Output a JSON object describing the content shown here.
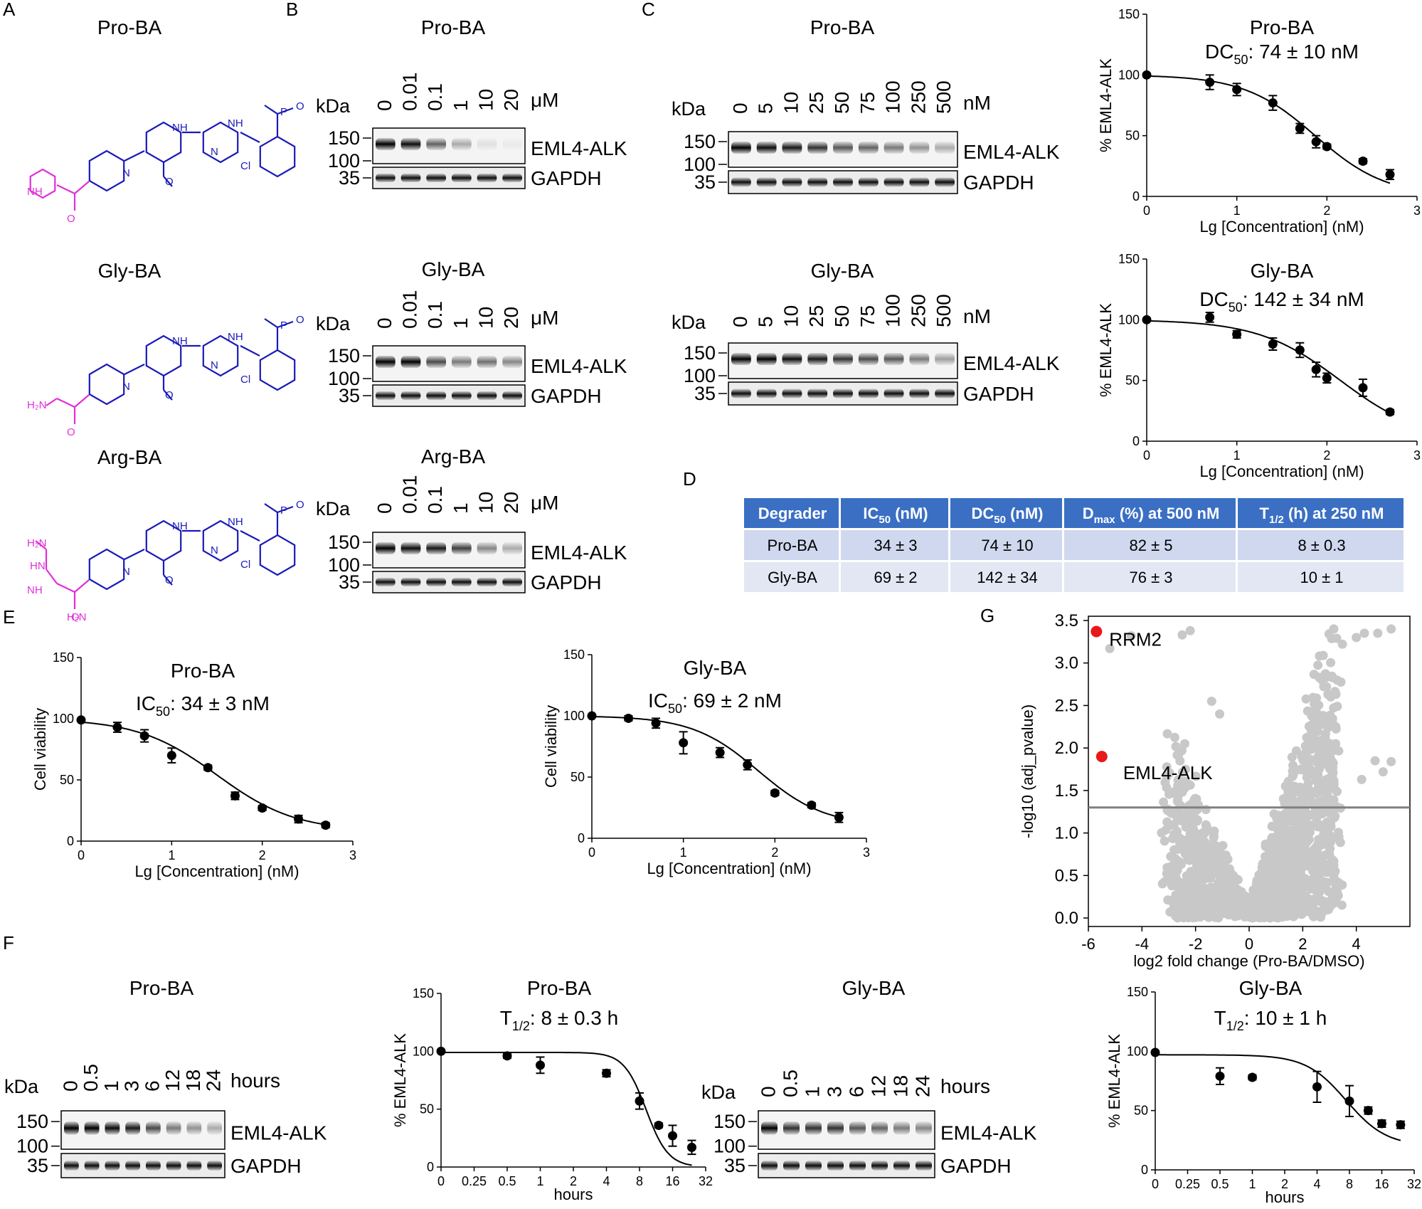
{
  "panels": {
    "A": {
      "label": "A",
      "compounds": [
        {
          "name": "Pro-BA",
          "warhead_atoms": [
            "N",
            "NH",
            "NH",
            "N",
            "O",
            "P",
            "Cl",
            "O"
          ],
          "ligand_atoms": [
            "NH",
            "O"
          ]
        },
        {
          "name": "Gly-BA",
          "warhead_atoms": [
            "N",
            "NH",
            "NH",
            "N",
            "O",
            "P",
            "Cl",
            "O"
          ],
          "ligand_atoms": [
            "H₂N",
            "O"
          ]
        },
        {
          "name": "Arg-BA",
          "warhead_atoms": [
            "N",
            "NH",
            "NH",
            "N",
            "O",
            "P",
            "Cl",
            "O"
          ],
          "ligand_atoms": [
            "NH",
            "H₂N",
            "HN",
            "H₂N",
            "O"
          ]
        }
      ]
    },
    "B": {
      "label": "B",
      "kda": "kDa",
      "unit": "μM",
      "lanes": [
        "0",
        "0.01",
        "0.1",
        "1",
        "10",
        "20"
      ],
      "markers": [
        "150",
        "100",
        "35"
      ],
      "bands": [
        "EML4-ALK",
        "GAPDH"
      ],
      "blots": [
        {
          "title": "Pro-BA",
          "intensity": [
            1.0,
            0.95,
            0.6,
            0.3,
            0.08,
            0.03
          ]
        },
        {
          "title": "Gly-BA",
          "intensity": [
            1.0,
            1.0,
            0.7,
            0.5,
            0.55,
            0.45
          ]
        },
        {
          "title": "Arg-BA",
          "intensity": [
            1.0,
            0.95,
            0.9,
            0.75,
            0.45,
            0.3
          ]
        }
      ]
    },
    "C": {
      "label": "C",
      "kda": "kDa",
      "unit": "nM",
      "lanes": [
        "0",
        "5",
        "10",
        "25",
        "50",
        "75",
        "100",
        "250",
        "500"
      ],
      "markers": [
        "150",
        "100",
        "35"
      ],
      "bands": [
        "EML4-ALK",
        "GAPDH"
      ],
      "blots": [
        {
          "title": "Pro-BA",
          "intensity": [
            1.0,
            0.95,
            0.9,
            0.8,
            0.65,
            0.6,
            0.5,
            0.4,
            0.3
          ]
        },
        {
          "title": "Gly-BA",
          "intensity": [
            1.0,
            1.0,
            0.95,
            0.9,
            0.8,
            0.7,
            0.65,
            0.5,
            0.35
          ]
        }
      ]
    },
    "D": {
      "label": "D",
      "headers": [
        "Degrader",
        "IC",
        "50",
        " (nM)",
        "DC",
        "50",
        " (nM)",
        "D",
        "max",
        " (%) at 500 nM",
        "T",
        "1/2",
        " (h) at 250 nM"
      ],
      "rows": [
        [
          "Pro-BA",
          "34 ± 3",
          "74 ± 10",
          "82 ± 5",
          "8 ± 0.3"
        ],
        [
          "Gly-BA",
          "69 ± 2",
          "142 ± 34",
          "76 ± 3",
          "10 ± 1"
        ]
      ],
      "colors": {
        "header": "#3a6fc4",
        "row1": "#cfd8ee",
        "row2": "#e2e7f3"
      }
    },
    "E": {
      "label": "E"
    },
    "F": {
      "label": "F",
      "kda": "kDa",
      "unit": "hours",
      "lanes": [
        "0",
        "0.5",
        "1",
        "3",
        "6",
        "12",
        "18",
        "24"
      ],
      "markers": [
        "150",
        "100",
        "35"
      ],
      "bands": [
        "EML4-ALK",
        "GAPDH"
      ],
      "blots": [
        {
          "title": "Pro-BA",
          "intensity": [
            1.0,
            1.0,
            0.95,
            0.9,
            0.7,
            0.5,
            0.4,
            0.3
          ]
        },
        {
          "title": "Gly-BA",
          "intensity": [
            1.0,
            0.8,
            0.8,
            0.8,
            0.65,
            0.6,
            0.5,
            0.45
          ]
        }
      ]
    },
    "G": {
      "label": "G"
    }
  },
  "chart_data": [
    {
      "id": "C-pro",
      "type": "scatter",
      "title": "Pro-BA",
      "subtitle_main": "DC",
      "subtitle_sub": "50",
      "subtitle_rest": ": 74 ± 10 nM",
      "xlabel": "Lg [Concentration] (nM)",
      "ylabel": "% EML4-ALK",
      "xlim": [
        0,
        3
      ],
      "ylim": [
        0,
        150
      ],
      "xticks": [
        "0",
        "1",
        "2",
        "3"
      ],
      "yticks": [
        "0",
        "50",
        "100",
        "150"
      ],
      "x": [
        0,
        0.7,
        1.0,
        1.4,
        1.7,
        1.88,
        2.0,
        2.4,
        2.7
      ],
      "y": [
        100,
        94,
        88,
        77,
        56,
        45,
        41,
        29,
        18
      ],
      "err": [
        0,
        6,
        5,
        6,
        4,
        5,
        2,
        2,
        4
      ],
      "fit": {
        "top": 100,
        "bottom": 0,
        "logEC50": 1.87,
        "hill": 1.1
      }
    },
    {
      "id": "C-gly",
      "type": "scatter",
      "title": "Gly-BA",
      "subtitle_main": "DC",
      "subtitle_sub": "50",
      "subtitle_rest": ": 142 ± 34 nM",
      "xlabel": "Lg [Concentration] (nM)",
      "ylabel": "% EML4-ALK",
      "xlim": [
        0,
        3
      ],
      "ylim": [
        0,
        150
      ],
      "xticks": [
        "0",
        "1",
        "2",
        "3"
      ],
      "yticks": [
        "0",
        "50",
        "100",
        "150"
      ],
      "x": [
        0,
        0.7,
        1.0,
        1.4,
        1.7,
        1.88,
        2.0,
        2.4,
        2.7
      ],
      "y": [
        100,
        102,
        88,
        80,
        75,
        59,
        52,
        44,
        24
      ],
      "err": [
        0,
        4,
        3,
        5,
        6,
        6,
        4,
        7,
        2
      ],
      "fit": {
        "top": 100,
        "bottom": 0,
        "logEC50": 2.15,
        "hill": 0.95
      }
    },
    {
      "id": "E-pro",
      "type": "scatter",
      "title": "Pro-BA",
      "subtitle_main": "IC",
      "subtitle_sub": "50",
      "subtitle_rest": ": 34 ± 3 nM",
      "xlabel": "Lg [Concentration] (nM)",
      "ylabel": "Cell viability",
      "xlim": [
        0,
        3
      ],
      "ylim": [
        0,
        150
      ],
      "xticks": [
        "0",
        "1",
        "2",
        "3"
      ],
      "yticks": [
        "0",
        "50",
        "100",
        "150"
      ],
      "x": [
        0,
        0.4,
        0.7,
        1.0,
        1.4,
        1.7,
        2.0,
        2.4,
        2.7
      ],
      "y": [
        99,
        93,
        86,
        70,
        60,
        37,
        27,
        18,
        13
      ],
      "err": [
        0,
        4,
        5,
        6,
        2,
        3,
        2,
        3,
        2
      ],
      "fit": {
        "top": 100,
        "bottom": 8,
        "logEC50": 1.5,
        "hill": 1.0
      }
    },
    {
      "id": "E-gly",
      "type": "scatter",
      "title": "Gly-BA",
      "subtitle_main": "IC",
      "subtitle_sub": "50",
      "subtitle_rest": ": 69 ± 2 nM",
      "xlabel": "Lg [Concentration] (nM)",
      "ylabel": "Cell viability",
      "xlim": [
        0,
        3
      ],
      "ylim": [
        0,
        150
      ],
      "xticks": [
        "0",
        "1",
        "2",
        "3"
      ],
      "yticks": [
        "0",
        "50",
        "100",
        "150"
      ],
      "x": [
        0,
        0.4,
        0.7,
        1.0,
        1.4,
        1.7,
        2.0,
        2.4,
        2.7
      ],
      "y": [
        100,
        98,
        94,
        78,
        70,
        60,
        37,
        27,
        17
      ],
      "err": [
        0,
        2,
        4,
        9,
        4,
        4,
        2,
        2,
        4
      ],
      "fit": {
        "top": 100,
        "bottom": 10,
        "logEC50": 1.82,
        "hill": 1.2
      }
    },
    {
      "id": "F-pro",
      "type": "scatter",
      "title": "Pro-BA",
      "subtitle_main": "T",
      "subtitle_sub": "1/2",
      "subtitle_rest": ": 8 ± 0.3 h",
      "xlabel": "hours",
      "ylabel": "% EML4-ALK",
      "xlim": [
        0,
        8
      ],
      "ylim": [
        0,
        150
      ],
      "xtick_values": [
        0,
        1,
        2,
        3,
        4,
        5,
        6,
        7,
        8
      ],
      "xticks": [
        "0",
        "0.25",
        "0.5",
        "1",
        "2",
        "4",
        "8",
        "16",
        "32"
      ],
      "yticks": [
        "0",
        "50",
        "100",
        "150"
      ],
      "x": [
        0,
        2,
        3,
        5,
        6,
        6.58,
        7,
        7.58
      ],
      "y": [
        100,
        96,
        88,
        81,
        57,
        36,
        27,
        17
      ],
      "err": [
        0,
        2,
        7,
        3,
        7,
        2,
        9,
        6
      ],
      "fit": {
        "top": 99,
        "bottom": 0,
        "logEC50": 6.2,
        "hill": 1.3
      }
    },
    {
      "id": "F-gly",
      "type": "scatter",
      "title": "Gly-BA",
      "subtitle_main": "T",
      "subtitle_sub": "1/2",
      "subtitle_rest": ": 10 ± 1 h",
      "xlabel": "hours",
      "ylabel": "% EML4-ALK",
      "xlim": [
        0,
        8
      ],
      "ylim": [
        0,
        150
      ],
      "xtick_values": [
        0,
        1,
        2,
        3,
        4,
        5,
        6,
        7,
        8
      ],
      "xticks": [
        "0",
        "0.25",
        "0.5",
        "1",
        "2",
        "4",
        "8",
        "16",
        "32"
      ],
      "yticks": [
        "0",
        "50",
        "100",
        "150"
      ],
      "x": [
        0,
        2,
        3,
        5,
        6,
        6.58,
        7,
        7.58
      ],
      "y": [
        99,
        79,
        78,
        70,
        58,
        50,
        39,
        38
      ],
      "err": [
        0,
        7,
        2,
        13,
        13,
        3,
        3,
        3
      ],
      "fit": {
        "top": 97,
        "bottom": 20,
        "logEC50": 5.9,
        "hill": 0.7
      }
    },
    {
      "id": "G-volcano",
      "type": "scatter",
      "xlabel": "log2 fold change (Pro-BA/DMSO)",
      "ylabel": "-log10 (adj_pvalue)",
      "xlim": [
        -6,
        6
      ],
      "ylim": [
        -0.1,
        3.55
      ],
      "xticks": [
        "-6",
        "-4",
        "-2",
        "0",
        "2",
        "4"
      ],
      "xtick_values": [
        -6,
        -4,
        -2,
        0,
        2,
        4
      ],
      "yticks": [
        "0.0",
        "0.5",
        "1.0",
        "1.5",
        "2.0",
        "2.5",
        "3.0",
        "3.5"
      ],
      "ytick_values": [
        0,
        0.5,
        1.0,
        1.5,
        2.0,
        2.5,
        3.0,
        3.5
      ],
      "threshold": 1.3,
      "highlights": [
        {
          "name": "RRM2",
          "x": -5.7,
          "y": 3.37
        },
        {
          "name": "EML4-ALK",
          "x": -5.5,
          "y": 1.9
        }
      ],
      "colors": {
        "background": "#c8c8c8",
        "highlight": "#e8191b",
        "threshold": "#808080"
      }
    }
  ]
}
